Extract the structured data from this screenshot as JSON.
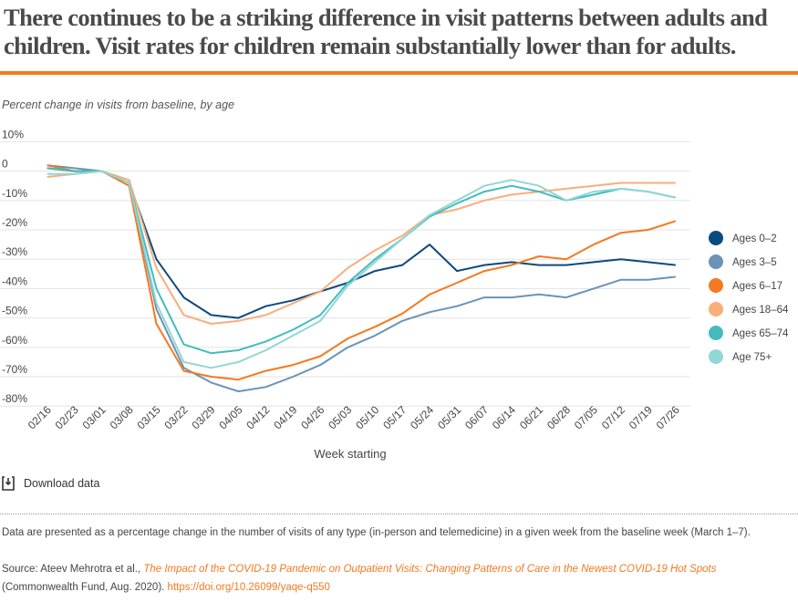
{
  "title": "There continues to be a striking difference in visit patterns between adults and children. Visit rates for children remain substantially lower than for adults.",
  "download_label": "Download data",
  "note": "Data are presented as a percentage change in the number of visits of any type (in-person and telemedicine) in a given week from the baseline week (March 1–7).",
  "source": {
    "prefix": "Source: Ateev Mehrotra et al., ",
    "link_title": "The Impact of the COVID-19 Pandemic on Outpatient Visits: Changing Patterns of Care in the Newest COVID-19 Hot Spots",
    "suffix": "(Commonwealth Fund, Aug. 2020). ",
    "doi": "https://doi.org/10.26099/yaqe-q550"
  },
  "chart_data": {
    "type": "line",
    "title": "Percent change in visits from baseline, by age",
    "xlabel": "Week starting",
    "ylabel": "",
    "ylim": [
      -80,
      10
    ],
    "yticks": [
      10,
      0,
      -10,
      -20,
      -30,
      -40,
      -50,
      -60,
      -70,
      -80
    ],
    "ytick_labels": [
      "10%",
      "0",
      "-10%",
      "-20%",
      "-30%",
      "-40%",
      "-50%",
      "-60%",
      "-70%",
      "-80%"
    ],
    "grid": true,
    "legend": "right",
    "x": [
      "02/16",
      "02/23",
      "03/01",
      "03/08",
      "03/15",
      "03/22",
      "03/29",
      "04/05",
      "04/12",
      "04/19",
      "04/26",
      "05/03",
      "05/10",
      "05/17",
      "05/24",
      "05/31",
      "06/07",
      "06/14",
      "06/21",
      "06/28",
      "07/05",
      "07/12",
      "07/19",
      "07/26"
    ],
    "series": [
      {
        "name": "Ages 0–2",
        "color": "#0b4a80",
        "values": [
          1,
          0,
          0,
          -4,
          -30,
          -43,
          -49,
          -50,
          -46,
          -44,
          -41,
          -38,
          -34,
          -32,
          -25,
          -34,
          -32,
          -31,
          -32,
          -32,
          -31,
          -30,
          -31,
          -32
        ]
      },
      {
        "name": "Ages 3–5",
        "color": "#6a93b6",
        "values": [
          2,
          1,
          0,
          -4,
          -47,
          -67,
          -72,
          -75,
          -73.5,
          -70,
          -66,
          -60,
          -56,
          -51,
          -48,
          -46,
          -43,
          -43,
          -42,
          -43,
          -40,
          -37,
          -37,
          -36
        ]
      },
      {
        "name": "Ages 6–17",
        "color": "#f47920",
        "values": [
          2,
          0,
          0,
          -5,
          -52,
          -68,
          -70,
          -71,
          -68,
          -66,
          -63,
          -57,
          -53,
          -48.5,
          -42,
          -38,
          -34,
          -32,
          -29,
          -30,
          -25,
          -21,
          -20,
          -17
        ]
      },
      {
        "name": "Ages 18–64",
        "color": "#f9ae7a",
        "values": [
          -2,
          -1,
          0,
          -3,
          -33,
          -49,
          -52,
          -51,
          -49,
          -45,
          -41,
          -33,
          -27,
          -22,
          -15,
          -13,
          -10,
          -8,
          -7,
          -6,
          -5,
          -4,
          -4,
          -4
        ]
      },
      {
        "name": "Ages 65–74",
        "color": "#45bbbb",
        "values": [
          1,
          0,
          0,
          -4,
          -40,
          -59,
          -62,
          -61,
          -58,
          -54,
          -49,
          -38,
          -30,
          -23,
          -15.5,
          -11,
          -7,
          -5,
          -7,
          -10,
          -8,
          -6,
          -7,
          -9
        ]
      },
      {
        "name": "Age 75+",
        "color": "#92d6d6",
        "values": [
          -1,
          -1,
          0,
          -4,
          -45,
          -65,
          -67,
          -65,
          -61,
          -56,
          -51,
          -39,
          -31,
          -23,
          -15,
          -10,
          -5,
          -3,
          -5,
          -10,
          -7,
          -6,
          -7,
          -9
        ]
      }
    ]
  }
}
